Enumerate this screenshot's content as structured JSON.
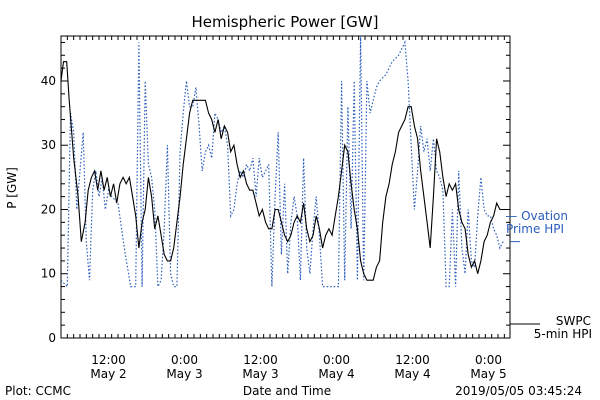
{
  "chart_data": {
    "type": "line",
    "title": "Hemispheric Power [GW]",
    "ylabel": "P [GW]",
    "xlabel": "Date and Time",
    "ylim": [
      0,
      47
    ],
    "yticks": [
      0,
      10,
      20,
      30,
      40
    ],
    "xlim_hours": [
      0,
      67.5
    ],
    "xticks": [
      {
        "hour": 7.5,
        "time": "12:00",
        "date": "May 2"
      },
      {
        "hour": 19.5,
        "time": "0:00",
        "date": "May 3"
      },
      {
        "hour": 31.5,
        "time": "12:00",
        "date": "May 3"
      },
      {
        "hour": 43.5,
        "time": "0:00",
        "date": "May 4"
      },
      {
        "hour": 55.5,
        "time": "12:00",
        "date": "May 4"
      },
      {
        "hour": 67.5,
        "time": "0:00",
        "date": "May 5"
      }
    ],
    "series": [
      {
        "name": "SWPC 5-min HPI",
        "label_lines": [
          "SWPC",
          "5-min HPI"
        ],
        "color": "#000000",
        "style": "solid",
        "points": [
          [
            0,
            40
          ],
          [
            0.4,
            43
          ],
          [
            0.9,
            43
          ],
          [
            1.3,
            37
          ],
          [
            2.0,
            28
          ],
          [
            2.7,
            22
          ],
          [
            3.2,
            15
          ],
          [
            3.8,
            18
          ],
          [
            4.3,
            23
          ],
          [
            4.8,
            25
          ],
          [
            5.3,
            26
          ],
          [
            5.8,
            23
          ],
          [
            6.3,
            26
          ],
          [
            6.8,
            23
          ],
          [
            7.3,
            25
          ],
          [
            7.8,
            22
          ],
          [
            8.3,
            24
          ],
          [
            8.8,
            21
          ],
          [
            9.3,
            24
          ],
          [
            9.8,
            25
          ],
          [
            10.3,
            24
          ],
          [
            10.8,
            25
          ],
          [
            11.3,
            22
          ],
          [
            11.8,
            19
          ],
          [
            12.3,
            14
          ],
          [
            12.8,
            18
          ],
          [
            13.3,
            20
          ],
          [
            13.8,
            25
          ],
          [
            14.3,
            22
          ],
          [
            14.8,
            17
          ],
          [
            15.3,
            19
          ],
          [
            15.8,
            16
          ],
          [
            16.3,
            13
          ],
          [
            16.8,
            12
          ],
          [
            17.3,
            12
          ],
          [
            17.8,
            14
          ],
          [
            18.3,
            18
          ],
          [
            18.8,
            22
          ],
          [
            19.3,
            27
          ],
          [
            19.8,
            31
          ],
          [
            20.3,
            35
          ],
          [
            20.8,
            37
          ],
          [
            21.3,
            37
          ],
          [
            21.8,
            37
          ],
          [
            22.3,
            37
          ],
          [
            22.8,
            37
          ],
          [
            23.3,
            35
          ],
          [
            23.8,
            34
          ],
          [
            24.3,
            32
          ],
          [
            24.8,
            34
          ],
          [
            25.3,
            31
          ],
          [
            25.8,
            33
          ],
          [
            26.3,
            32
          ],
          [
            26.8,
            29
          ],
          [
            27.3,
            30
          ],
          [
            27.8,
            27
          ],
          [
            28.3,
            25
          ],
          [
            28.8,
            26
          ],
          [
            29.3,
            24
          ],
          [
            29.8,
            23
          ],
          [
            30.3,
            23
          ],
          [
            30.8,
            21
          ],
          [
            31.3,
            19
          ],
          [
            31.8,
            20
          ],
          [
            32.3,
            18
          ],
          [
            32.8,
            17
          ],
          [
            33.3,
            17
          ],
          [
            33.8,
            20
          ],
          [
            34.3,
            20
          ],
          [
            34.8,
            18
          ],
          [
            35.3,
            16
          ],
          [
            35.8,
            15
          ],
          [
            36.3,
            16
          ],
          [
            36.8,
            18
          ],
          [
            37.3,
            19
          ],
          [
            37.8,
            18
          ],
          [
            38.3,
            21
          ],
          [
            38.8,
            17
          ],
          [
            39.3,
            15
          ],
          [
            39.8,
            16
          ],
          [
            40.3,
            19
          ],
          [
            40.8,
            17
          ],
          [
            41.3,
            14
          ],
          [
            41.8,
            16
          ],
          [
            42.3,
            17
          ],
          [
            42.8,
            16
          ],
          [
            43.3,
            19
          ],
          [
            43.8,
            22
          ],
          [
            44.3,
            26
          ],
          [
            44.8,
            30
          ],
          [
            45.3,
            29
          ],
          [
            45.8,
            24
          ],
          [
            46.3,
            20
          ],
          [
            46.8,
            17
          ],
          [
            47.3,
            12
          ],
          [
            47.8,
            10
          ],
          [
            48.3,
            9
          ],
          [
            48.8,
            9
          ],
          [
            49.3,
            9
          ],
          [
            49.8,
            11
          ],
          [
            50.3,
            12
          ],
          [
            50.8,
            18
          ],
          [
            51.3,
            22
          ],
          [
            51.8,
            24
          ],
          [
            52.3,
            27
          ],
          [
            52.8,
            29
          ],
          [
            53.3,
            32
          ],
          [
            53.8,
            33
          ],
          [
            54.3,
            34
          ],
          [
            54.8,
            36
          ],
          [
            55.3,
            36
          ],
          [
            55.8,
            33
          ],
          [
            56.3,
            31
          ],
          [
            56.8,
            26
          ],
          [
            57.3,
            22
          ],
          [
            57.8,
            18
          ],
          [
            58.3,
            14
          ],
          [
            58.8,
            22
          ],
          [
            59.3,
            31
          ],
          [
            59.8,
            29
          ],
          [
            60.3,
            25
          ],
          [
            60.8,
            22
          ],
          [
            61.3,
            24
          ],
          [
            61.8,
            23
          ],
          [
            62.3,
            24
          ],
          [
            62.8,
            20
          ],
          [
            63.3,
            18
          ],
          [
            63.8,
            17
          ],
          [
            64.3,
            13
          ],
          [
            64.8,
            11
          ],
          [
            65.3,
            12
          ],
          [
            65.8,
            10
          ],
          [
            66.3,
            12
          ],
          [
            66.8,
            15
          ],
          [
            67.3,
            16
          ],
          [
            67.8,
            18
          ],
          [
            68.3,
            19
          ],
          [
            68.8,
            21
          ],
          [
            69.3,
            20
          ],
          [
            69.8,
            20
          ]
        ]
      },
      {
        "name": "Ovation Prime HPI",
        "label_lines": [
          "— Ovation",
          "Prime HPI"
        ],
        "color": "#2a5dbb",
        "style": "dotted",
        "points": [
          [
            0,
            9
          ],
          [
            1.0,
            8
          ],
          [
            1.5,
            35
          ],
          [
            2.0,
            32
          ],
          [
            2.5,
            20
          ],
          [
            3.0,
            26
          ],
          [
            3.5,
            32
          ],
          [
            4.0,
            15
          ],
          [
            4.5,
            9
          ],
          [
            5.0,
            23
          ],
          [
            5.5,
            26
          ],
          [
            6.0,
            22
          ],
          [
            6.5,
            25
          ],
          [
            7.0,
            20
          ],
          [
            7.5,
            23
          ],
          [
            8.0,
            22
          ],
          [
            9.0,
            21
          ],
          [
            10.0,
            14
          ],
          [
            11.0,
            8
          ],
          [
            11.8,
            8
          ],
          [
            12.3,
            46
          ],
          [
            12.8,
            8
          ],
          [
            13.3,
            40
          ],
          [
            13.8,
            27
          ],
          [
            14.3,
            25
          ],
          [
            14.8,
            20
          ],
          [
            15.3,
            8
          ],
          [
            15.8,
            9
          ],
          [
            16.3,
            17
          ],
          [
            16.8,
            30
          ],
          [
            17.3,
            10
          ],
          [
            17.8,
            8
          ],
          [
            18.3,
            8
          ],
          [
            18.8,
            29
          ],
          [
            19.3,
            35
          ],
          [
            19.8,
            40
          ],
          [
            20.3,
            36
          ],
          [
            20.8,
            36
          ],
          [
            21.3,
            39
          ],
          [
            21.8,
            33
          ],
          [
            22.3,
            26
          ],
          [
            22.8,
            29
          ],
          [
            23.3,
            30
          ],
          [
            23.8,
            28
          ],
          [
            24.3,
            35
          ],
          [
            24.8,
            34
          ],
          [
            25.3,
            32
          ],
          [
            25.8,
            33
          ],
          [
            26.3,
            30
          ],
          [
            26.8,
            19
          ],
          [
            27.3,
            20
          ],
          [
            27.8,
            24
          ],
          [
            28.3,
            26
          ],
          [
            28.8,
            25
          ],
          [
            29.3,
            27
          ],
          [
            29.8,
            26
          ],
          [
            30.3,
            28
          ],
          [
            30.8,
            22
          ],
          [
            31.3,
            28
          ],
          [
            31.8,
            25
          ],
          [
            32.3,
            26
          ],
          [
            32.8,
            27
          ],
          [
            33.3,
            8
          ],
          [
            33.8,
            22
          ],
          [
            34.3,
            32
          ],
          [
            34.8,
            13
          ],
          [
            35.3,
            24
          ],
          [
            35.8,
            10
          ],
          [
            36.3,
            18
          ],
          [
            36.8,
            22
          ],
          [
            37.3,
            19
          ],
          [
            37.8,
            9
          ],
          [
            38.3,
            28
          ],
          [
            38.8,
            14
          ],
          [
            39.3,
            10
          ],
          [
            39.8,
            17
          ],
          [
            40.3,
            22
          ],
          [
            40.8,
            16
          ],
          [
            41.3,
            8
          ],
          [
            41.8,
            8
          ],
          [
            42.3,
            8
          ],
          [
            42.8,
            8
          ],
          [
            43.3,
            8
          ],
          [
            43.8,
            8
          ],
          [
            44.3,
            40
          ],
          [
            44.8,
            9
          ],
          [
            45.3,
            36
          ],
          [
            45.8,
            17
          ],
          [
            46.3,
            40
          ],
          [
            46.8,
            9
          ],
          [
            47.3,
            47
          ],
          [
            47.8,
            9
          ],
          [
            48.3,
            40
          ],
          [
            48.8,
            35
          ],
          [
            49.3,
            37
          ],
          [
            49.8,
            39
          ],
          [
            50.3,
            40
          ],
          [
            51.3,
            41
          ],
          [
            52.3,
            43
          ],
          [
            53.3,
            44
          ],
          [
            54.3,
            46
          ],
          [
            54.8,
            40
          ],
          [
            55.3,
            30
          ],
          [
            55.8,
            20
          ],
          [
            56.3,
            26
          ],
          [
            56.8,
            33
          ],
          [
            57.3,
            29
          ],
          [
            57.8,
            31
          ],
          [
            58.3,
            26
          ],
          [
            58.8,
            31
          ],
          [
            59.3,
            26
          ],
          [
            59.8,
            25
          ],
          [
            60.3,
            23
          ],
          [
            60.8,
            8
          ],
          [
            61.3,
            8
          ],
          [
            61.8,
            20
          ],
          [
            62.3,
            8
          ],
          [
            62.8,
            26
          ],
          [
            63.3,
            14
          ],
          [
            63.8,
            10
          ],
          [
            64.3,
            20
          ],
          [
            64.8,
            12
          ],
          [
            65.3,
            11
          ],
          [
            65.8,
            19
          ],
          [
            66.3,
            25
          ],
          [
            66.8,
            20
          ],
          [
            67.3,
            19
          ],
          [
            67.8,
            19
          ],
          [
            68.3,
            17
          ],
          [
            68.8,
            16
          ],
          [
            69.3,
            14
          ],
          [
            69.8,
            15
          ]
        ]
      }
    ]
  },
  "footer": {
    "left": "Plot: CCMC",
    "center": "Date and Time",
    "right": "2019/05/05 03:45:24"
  }
}
